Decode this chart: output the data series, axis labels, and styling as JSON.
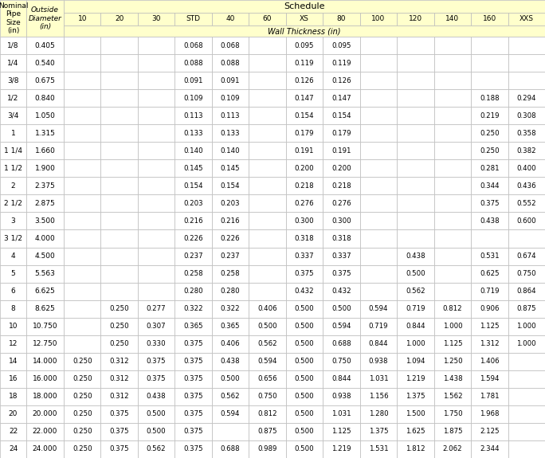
{
  "header_bg": "#FFFFCC",
  "grid_color": "#BBBBBB",
  "col_headers": [
    "10",
    "20",
    "30",
    "STD",
    "40",
    "60",
    "XS",
    "80",
    "100",
    "120",
    "140",
    "160",
    "XXS"
  ],
  "nps_labels": [
    "1/8",
    "1/4",
    "3/8",
    "1/2",
    "3/4",
    "1",
    "1 1/4",
    "1 1/2",
    "2",
    "2 1/2",
    "3",
    "3 1/2",
    "4",
    "5",
    "6",
    "8",
    "10",
    "12",
    "14",
    "16",
    "18",
    "20",
    "22",
    "24"
  ],
  "od_labels": [
    "0.405",
    "0.540",
    "0.675",
    "0.840",
    "1.050",
    "1.315",
    "1.660",
    "1.900",
    "2.375",
    "2.875",
    "3.500",
    "4.000",
    "4.500",
    "5.563",
    "6.625",
    "8.625",
    "10.750",
    "12.750",
    "14.000",
    "16.000",
    "18.000",
    "20.000",
    "22.000",
    "24.000"
  ],
  "rows": [
    [
      "",
      "",
      "",
      "0.068",
      "0.068",
      "",
      "0.095",
      "0.095",
      "",
      "",
      "",
      "",
      ""
    ],
    [
      "",
      "",
      "",
      "0.088",
      "0.088",
      "",
      "0.119",
      "0.119",
      "",
      "",
      "",
      "",
      ""
    ],
    [
      "",
      "",
      "",
      "0.091",
      "0.091",
      "",
      "0.126",
      "0.126",
      "",
      "",
      "",
      "",
      ""
    ],
    [
      "",
      "",
      "",
      "0.109",
      "0.109",
      "",
      "0.147",
      "0.147",
      "",
      "",
      "",
      "0.188",
      "0.294"
    ],
    [
      "",
      "",
      "",
      "0.113",
      "0.113",
      "",
      "0.154",
      "0.154",
      "",
      "",
      "",
      "0.219",
      "0.308"
    ],
    [
      "",
      "",
      "",
      "0.133",
      "0.133",
      "",
      "0.179",
      "0.179",
      "",
      "",
      "",
      "0.250",
      "0.358"
    ],
    [
      "",
      "",
      "",
      "0.140",
      "0.140",
      "",
      "0.191",
      "0.191",
      "",
      "",
      "",
      "0.250",
      "0.382"
    ],
    [
      "",
      "",
      "",
      "0.145",
      "0.145",
      "",
      "0.200",
      "0.200",
      "",
      "",
      "",
      "0.281",
      "0.400"
    ],
    [
      "",
      "",
      "",
      "0.154",
      "0.154",
      "",
      "0.218",
      "0.218",
      "",
      "",
      "",
      "0.344",
      "0.436"
    ],
    [
      "",
      "",
      "",
      "0.203",
      "0.203",
      "",
      "0.276",
      "0.276",
      "",
      "",
      "",
      "0.375",
      "0.552"
    ],
    [
      "",
      "",
      "",
      "0.216",
      "0.216",
      "",
      "0.300",
      "0.300",
      "",
      "",
      "",
      "0.438",
      "0.600"
    ],
    [
      "",
      "",
      "",
      "0.226",
      "0.226",
      "",
      "0.318",
      "0.318",
      "",
      "",
      "",
      "",
      ""
    ],
    [
      "",
      "",
      "",
      "0.237",
      "0.237",
      "",
      "0.337",
      "0.337",
      "",
      "0.438",
      "",
      "0.531",
      "0.674"
    ],
    [
      "",
      "",
      "",
      "0.258",
      "0.258",
      "",
      "0.375",
      "0.375",
      "",
      "0.500",
      "",
      "0.625",
      "0.750"
    ],
    [
      "",
      "",
      "",
      "0.280",
      "0.280",
      "",
      "0.432",
      "0.432",
      "",
      "0.562",
      "",
      "0.719",
      "0.864"
    ],
    [
      "",
      "0.250",
      "0.277",
      "0.322",
      "0.322",
      "0.406",
      "0.500",
      "0.500",
      "0.594",
      "0.719",
      "0.812",
      "0.906",
      "0.875"
    ],
    [
      "",
      "0.250",
      "0.307",
      "0.365",
      "0.365",
      "0.500",
      "0.500",
      "0.594",
      "0.719",
      "0.844",
      "1.000",
      "1.125",
      "1.000"
    ],
    [
      "",
      "0.250",
      "0.330",
      "0.375",
      "0.406",
      "0.562",
      "0.500",
      "0.688",
      "0.844",
      "1.000",
      "1.125",
      "1.312",
      "1.000"
    ],
    [
      "0.250",
      "0.312",
      "0.375",
      "0.375",
      "0.438",
      "0.594",
      "0.500",
      "0.750",
      "0.938",
      "1.094",
      "1.250",
      "1.406",
      ""
    ],
    [
      "0.250",
      "0.312",
      "0.375",
      "0.375",
      "0.500",
      "0.656",
      "0.500",
      "0.844",
      "1.031",
      "1.219",
      "1.438",
      "1.594",
      ""
    ],
    [
      "0.250",
      "0.312",
      "0.438",
      "0.375",
      "0.562",
      "0.750",
      "0.500",
      "0.938",
      "1.156",
      "1.375",
      "1.562",
      "1.781",
      ""
    ],
    [
      "0.250",
      "0.375",
      "0.500",
      "0.375",
      "0.594",
      "0.812",
      "0.500",
      "1.031",
      "1.280",
      "1.500",
      "1.750",
      "1.968",
      ""
    ],
    [
      "0.250",
      "0.375",
      "0.500",
      "0.375",
      "",
      "0.875",
      "0.500",
      "1.125",
      "1.375",
      "1.625",
      "1.875",
      "2.125",
      ""
    ],
    [
      "0.250",
      "0.375",
      "0.562",
      "0.375",
      "0.688",
      "0.989",
      "0.500",
      "1.219",
      "1.531",
      "1.812",
      "2.062",
      "2.344",
      ""
    ]
  ],
  "fig_width": 6.84,
  "fig_height": 5.75,
  "dpi": 100
}
